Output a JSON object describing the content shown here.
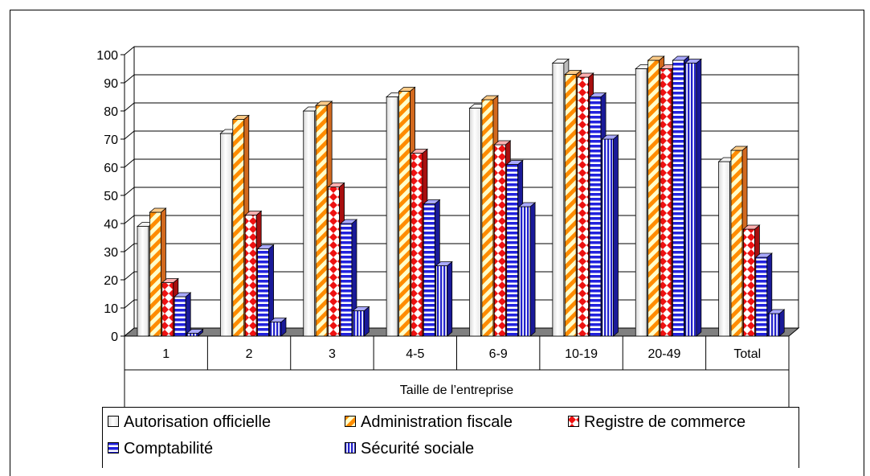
{
  "chart_data": {
    "type": "bar",
    "categories": [
      "1",
      "2",
      "3",
      "4-5",
      "6-9",
      "10-19",
      "20-49",
      "Total"
    ],
    "series": [
      {
        "name": "Autorisation officielle",
        "values": [
          39,
          72,
          80,
          85,
          81,
          97,
          95,
          62
        ]
      },
      {
        "name": "Administration fiscale",
        "values": [
          44,
          77,
          82,
          87,
          84,
          93,
          98,
          66
        ]
      },
      {
        "name": "Registre de commerce",
        "values": [
          19,
          43,
          53,
          65,
          68,
          92,
          95,
          38
        ]
      },
      {
        "name": "Comptabilité",
        "values": [
          14,
          31,
          40,
          47,
          61,
          85,
          98,
          28
        ]
      },
      {
        "name": "Sécurité sociale",
        "values": [
          1,
          5,
          9,
          25,
          46,
          70,
          97,
          8
        ]
      }
    ],
    "title": "",
    "xlabel": "Taille de l’entreprise",
    "ylabel": "",
    "ylim": [
      0,
      100
    ],
    "yticks": [
      "0",
      "10",
      "20",
      "30",
      "40",
      "50",
      "60",
      "70",
      "80",
      "90",
      "100"
    ],
    "grid": true,
    "legend_position": "bottom",
    "colors": {
      "autorisation": "#ffffff",
      "fiscale_stripe": "#ff8c00",
      "fiscale_bg": "#ffffcc",
      "registre_a": "#ee1111",
      "registre_b": "#ffffff",
      "comptabilite_a": "#2222dd",
      "comptabilite_b": "#ffffff",
      "securite_a": "#2222cc",
      "securite_b": "#ffffff",
      "floor": "#808080"
    }
  }
}
